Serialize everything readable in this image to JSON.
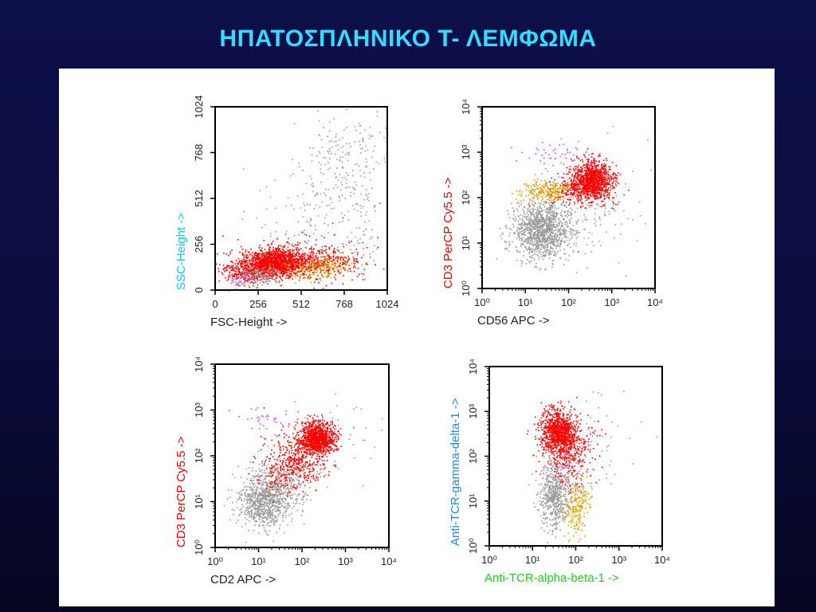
{
  "slide": {
    "title": "ΗΠΑΤΟΣΠΛΗΝΙΚΟ Τ- ΛΕΜΦΩΜΑ"
  },
  "colors": {
    "background": "#0b0c3c",
    "title": "#33ddff",
    "panel": "#ffffff",
    "t_cells": "#ff0000",
    "nk_cells": "#e0a000",
    "other": "#dd44dd",
    "ungated": "#9a9a9a"
  },
  "chart_data": [
    {
      "id": "fsc-ssc",
      "type": "scatter",
      "scale": "linear",
      "xlabel": "FSC-Height ->",
      "ylabel": "SSC-Height ->",
      "xlim": [
        0,
        1024
      ],
      "ylim": [
        0,
        1024
      ],
      "xticks": [
        "0",
        "256",
        "512",
        "768",
        "1024"
      ],
      "yticks": [
        "0",
        "256",
        "512",
        "768",
        "1024"
      ],
      "populations": [
        {
          "color": "#ff0000",
          "clusters": [
            [
              360,
              160,
              90,
              35,
              1500
            ],
            [
              220,
              110,
              90,
              30,
              400
            ],
            [
              620,
              160,
              110,
              40,
              300
            ],
            [
              470,
              150,
              260,
              70,
              250
            ]
          ]
        },
        {
          "color": "#e0a000",
          "clusters": [
            [
              560,
              120,
              120,
              30,
              150
            ],
            [
              680,
              150,
              80,
              20,
              60
            ]
          ]
        },
        {
          "color": "#dd44dd",
          "clusters": [
            [
              160,
              70,
              40,
              20,
              40
            ]
          ]
        },
        {
          "color": "#9a9a9a",
          "clusters": [
            [
              760,
              720,
              140,
              200,
              220
            ],
            [
              540,
              380,
              200,
              160,
              120
            ],
            [
              260,
              80,
              70,
              30,
              150
            ],
            [
              880,
              300,
              50,
              120,
              40
            ]
          ]
        }
      ]
    },
    {
      "id": "cd56-cd3",
      "type": "scatter",
      "scale": "log",
      "xlabel": "CD56 APC ->",
      "ylabel": "CD3 PerCP Cy5.5 ->",
      "xlim": [
        1,
        10000
      ],
      "ylim": [
        1,
        10000
      ],
      "xticks": [
        "10⁰",
        "10¹",
        "10²",
        "10³",
        "10⁴"
      ],
      "yticks": [
        "10⁰",
        "10¹",
        "10²",
        "10³",
        "10⁴"
      ],
      "populations": [
        {
          "color": "#9a9a9a",
          "clusters": [
            [
              1.35,
              1.3,
              0.32,
              0.3,
              1100
            ],
            [
              1.8,
              1.5,
              0.5,
              0.4,
              250
            ],
            [
              2.6,
              2.0,
              0.6,
              0.7,
              60
            ]
          ]
        },
        {
          "color": "#ff0000",
          "clusters": [
            [
              2.55,
              2.4,
              0.22,
              0.2,
              1100
            ],
            [
              2.2,
              2.15,
              0.3,
              0.15,
              250
            ]
          ]
        },
        {
          "color": "#e0a000",
          "clusters": [
            [
              1.5,
              2.15,
              0.3,
              0.12,
              220
            ]
          ]
        },
        {
          "color": "#dd44dd",
          "clusters": [
            [
              1.7,
              2.95,
              0.4,
              0.12,
              45
            ]
          ]
        }
      ]
    },
    {
      "id": "cd2-cd3",
      "type": "scatter",
      "scale": "log",
      "xlabel": "CD2 APC ->",
      "ylabel": "CD3 PerCP Cy5.5 ->",
      "xlim": [
        1,
        10000
      ],
      "ylim": [
        1,
        10000
      ],
      "xticks": [
        "10⁰",
        "10¹",
        "10²",
        "10³",
        "10⁴"
      ],
      "yticks": [
        "10⁰",
        "10¹",
        "10²",
        "10³",
        "10⁴"
      ],
      "populations": [
        {
          "color": "#9a9a9a",
          "clusters": [
            [
              1.1,
              1.0,
              0.3,
              0.28,
              800
            ],
            [
              1.6,
              1.4,
              0.35,
              0.3,
              300
            ],
            [
              2.8,
              2.6,
              0.5,
              0.6,
              40
            ]
          ]
        },
        {
          "color": "#ff0000",
          "clusters": [
            [
              2.35,
              2.4,
              0.2,
              0.18,
              1100
            ],
            [
              1.9,
              1.95,
              0.35,
              0.3,
              400
            ],
            [
              1.5,
              1.6,
              0.3,
              0.25,
              100
            ]
          ]
        },
        {
          "color": "#dd44dd",
          "clusters": [
            [
              1.2,
              2.8,
              0.35,
              0.12,
              35
            ]
          ]
        }
      ]
    },
    {
      "id": "tcrab-tcrgd",
      "type": "scatter",
      "scale": "log",
      "xlabel": "Anti-TCR-alpha-beta-1 ->",
      "ylabel": "Anti-TCR-gamma-delta-1 ->",
      "xlim": [
        1,
        10000
      ],
      "ylim": [
        1,
        10000
      ],
      "xticks": [
        "10⁰",
        "10¹",
        "10²",
        "10³",
        "10⁴"
      ],
      "yticks": [
        "10⁰",
        "10¹",
        "10²",
        "10³",
        "10⁴"
      ],
      "populations": [
        {
          "color": "#9a9a9a",
          "clusters": [
            [
              1.5,
              1.1,
              0.18,
              0.35,
              500
            ],
            [
              1.7,
              1.5,
              0.3,
              0.4,
              150
            ],
            [
              2.5,
              2.4,
              0.5,
              0.5,
              50
            ]
          ]
        },
        {
          "color": "#ff0000",
          "clusters": [
            [
              1.6,
              2.55,
              0.2,
              0.25,
              1000
            ],
            [
              1.8,
              2.1,
              0.3,
              0.3,
              300
            ]
          ]
        },
        {
          "color": "#e0a000",
          "clusters": [
            [
              2.0,
              0.9,
              0.15,
              0.35,
              200
            ]
          ]
        },
        {
          "color": "#dd44dd",
          "clusters": [
            [
              1.7,
              1.7,
              0.3,
              0.25,
              40
            ]
          ]
        }
      ]
    }
  ]
}
